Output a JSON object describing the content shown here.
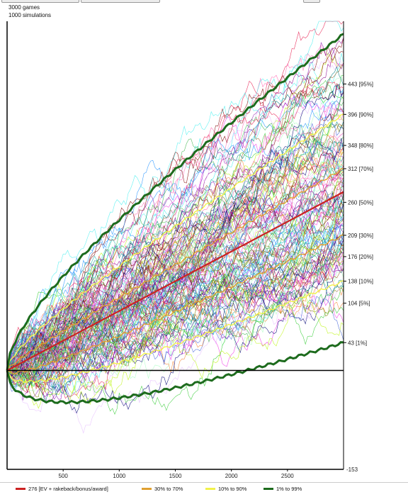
{
  "header": {
    "games": "3000 games",
    "simulations": "1000 simulations"
  },
  "chart_data": {
    "type": "line",
    "title": "",
    "xlabel": "",
    "ylabel": "",
    "x_range": [
      0,
      3000
    ],
    "y_range": [
      -153,
      540
    ],
    "x_ticks": [
      500,
      1000,
      1500,
      2000,
      2500
    ],
    "y_bottom_label": "-153",
    "y_tick_labels": [
      {
        "value": 443,
        "label": "443 [95%]"
      },
      {
        "value": 396,
        "label": "396 [90%]"
      },
      {
        "value": 348,
        "label": "348 [80%]"
      },
      {
        "value": 312,
        "label": "312 [70%]"
      },
      {
        "value": 260,
        "label": "260 [50%]"
      },
      {
        "value": 209,
        "label": "209 [30%]"
      },
      {
        "value": 176,
        "label": "176 [20%]"
      },
      {
        "value": 138,
        "label": "138 [10%]"
      },
      {
        "value": 104,
        "label": "104 [5%]"
      },
      {
        "value": 43,
        "label": "43 [1%]"
      }
    ],
    "ev_line": {
      "label": "276 [EV + rakeback/bonus/award]",
      "end_value": 276,
      "color": "#cc2222"
    },
    "percentile_bands": [
      {
        "label": "30% to 70%",
        "color": "#e0a030",
        "end_low": 209,
        "end_high": 312,
        "kind": "sqrt"
      },
      {
        "label": "10% to 90%",
        "color": "#f2f24a",
        "end_low": 138,
        "end_high": 396,
        "kind": "sqrt"
      },
      {
        "label": "1% to 99%",
        "color": "#1d6b1d",
        "end_low": 43,
        "end_high": 520,
        "kind": "sqrt"
      }
    ],
    "zero_line_value": 0,
    "grid": false,
    "legend_position": "bottom"
  }
}
